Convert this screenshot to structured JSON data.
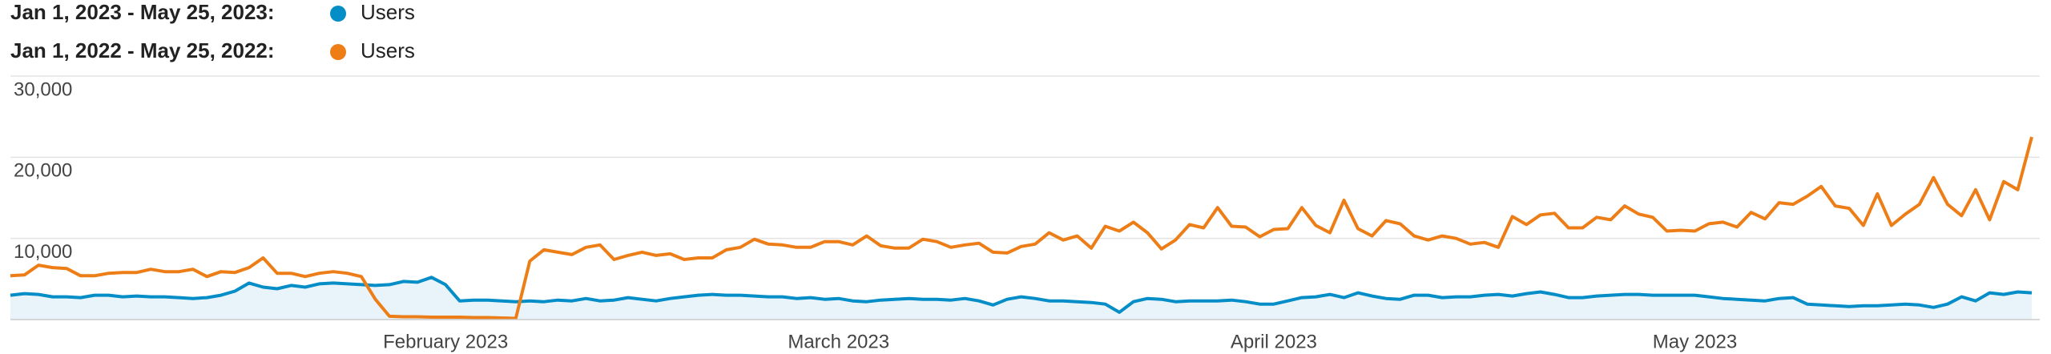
{
  "chart_data": {
    "type": "line",
    "categories": [
      null,
      null,
      null,
      null,
      null,
      null,
      null,
      null,
      null,
      null,
      null,
      null,
      null,
      null,
      null,
      null,
      null,
      null,
      null,
      null,
      null,
      null,
      null,
      null,
      null,
      null,
      null,
      null,
      null,
      null,
      null,
      "February 2023",
      null,
      null,
      null,
      null,
      null,
      null,
      null,
      null,
      null,
      null,
      null,
      null,
      null,
      null,
      null,
      null,
      null,
      null,
      null,
      null,
      null,
      null,
      null,
      null,
      null,
      null,
      null,
      "March 2023",
      null,
      null,
      null,
      null,
      null,
      null,
      null,
      null,
      null,
      null,
      null,
      null,
      null,
      null,
      null,
      null,
      null,
      null,
      null,
      null,
      null,
      null,
      null,
      null,
      null,
      null,
      null,
      null,
      null,
      null,
      "April 2023",
      null,
      null,
      null,
      null,
      null,
      null,
      null,
      null,
      null,
      null,
      null,
      null,
      null,
      null,
      null,
      null,
      null,
      null,
      null,
      null,
      null,
      null,
      null,
      null,
      null,
      null,
      null,
      null,
      null,
      "May 2023",
      null,
      null,
      null,
      null,
      null,
      null,
      null,
      null,
      null,
      null,
      null,
      null,
      null,
      null,
      null,
      null,
      null,
      null,
      null,
      null,
      null,
      null,
      null,
      null
    ],
    "series": [
      {
        "name": "Users",
        "period": "Jan 1, 2023 - May 25, 2023:",
        "color": "#058dc7",
        "area": true,
        "values": [
          3000,
          3200,
          3100,
          2800,
          2800,
          2700,
          3000,
          3000,
          2800,
          2900,
          2800,
          2800,
          2700,
          2600,
          2700,
          3000,
          3500,
          4500,
          4000,
          3800,
          4200,
          4000,
          4400,
          4500,
          4400,
          4300,
          4200,
          4300,
          4700,
          4600,
          5200,
          4300,
          2300,
          2400,
          2400,
          2300,
          2200,
          2300,
          2200,
          2400,
          2300,
          2600,
          2300,
          2400,
          2700,
          2500,
          2300,
          2600,
          2800,
          3000,
          3100,
          3000,
          3000,
          2900,
          2800,
          2800,
          2600,
          2700,
          2500,
          2600,
          2300,
          2200,
          2400,
          2500,
          2600,
          2500,
          2500,
          2400,
          2600,
          2300,
          1800,
          2500,
          2800,
          2600,
          2300,
          2300,
          2200,
          2100,
          1900,
          900,
          2200,
          2600,
          2500,
          2200,
          2300,
          2300,
          2300,
          2400,
          2200,
          1900,
          1900,
          2300,
          2700,
          2800,
          3100,
          2700,
          3300,
          2900,
          2600,
          2500,
          3000,
          3000,
          2700,
          2800,
          2800,
          3000,
          3100,
          2900,
          3200,
          3400,
          3100,
          2700,
          2700,
          2900,
          3000,
          3100,
          3100,
          3000,
          3000,
          3000,
          3000,
          2800,
          2600,
          2500,
          2400,
          2300,
          2600,
          2700,
          1900,
          1800,
          1700,
          1600,
          1700,
          1700,
          1800,
          1900,
          1800,
          1500,
          1900,
          2800,
          2300,
          3300,
          3100,
          3400,
          3300
        ]
      },
      {
        "name": "Users",
        "period": "Jan 1, 2022 - May 25, 2022:",
        "color": "#ed7e17",
        "area": false,
        "values": [
          5400,
          5500,
          6700,
          6400,
          6300,
          5400,
          5400,
          5700,
          5800,
          5800,
          6200,
          5900,
          5900,
          6200,
          5300,
          5900,
          5800,
          6400,
          7600,
          5700,
          5700,
          5300,
          5700,
          5900,
          5700,
          5300,
          2500,
          400,
          350,
          350,
          300,
          300,
          300,
          250,
          250,
          200,
          150,
          7200,
          8600,
          8300,
          8000,
          8900,
          9200,
          7400,
          7900,
          8300,
          7900,
          8100,
          7400,
          7600,
          7600,
          8600,
          8900,
          9900,
          9300,
          9200,
          8900,
          8900,
          9600,
          9600,
          9200,
          10300,
          9100,
          8800,
          8800,
          9900,
          9600,
          8900,
          9200,
          9400,
          8300,
          8200,
          9000,
          9300,
          10700,
          9800,
          10300,
          8800,
          11500,
          10900,
          12000,
          10700,
          8700,
          9800,
          11700,
          11300,
          13800,
          11500,
          11400,
          10200,
          11100,
          11200,
          13800,
          11600,
          10700,
          14700,
          11200,
          10300,
          12200,
          11800,
          10300,
          9800,
          10300,
          10000,
          9300,
          9500,
          8900,
          12700,
          11700,
          12900,
          13100,
          11300,
          11300,
          12600,
          12300,
          14000,
          13000,
          12600,
          10900,
          11000,
          10900,
          11800,
          12000,
          11400,
          13200,
          12400,
          14400,
          14200,
          15200,
          16400,
          14000,
          13700,
          11600,
          15500,
          11600,
          13000,
          14200,
          17500,
          14200,
          12800,
          16000,
          12300,
          17000,
          16000,
          22500
        ]
      }
    ],
    "ylim": [
      0,
      30000
    ],
    "yticks": [
      {
        "value": 10000,
        "label": "10,000"
      },
      {
        "value": 20000,
        "label": "20,000"
      },
      {
        "value": 30000,
        "label": "30,000"
      }
    ],
    "grid": true
  }
}
